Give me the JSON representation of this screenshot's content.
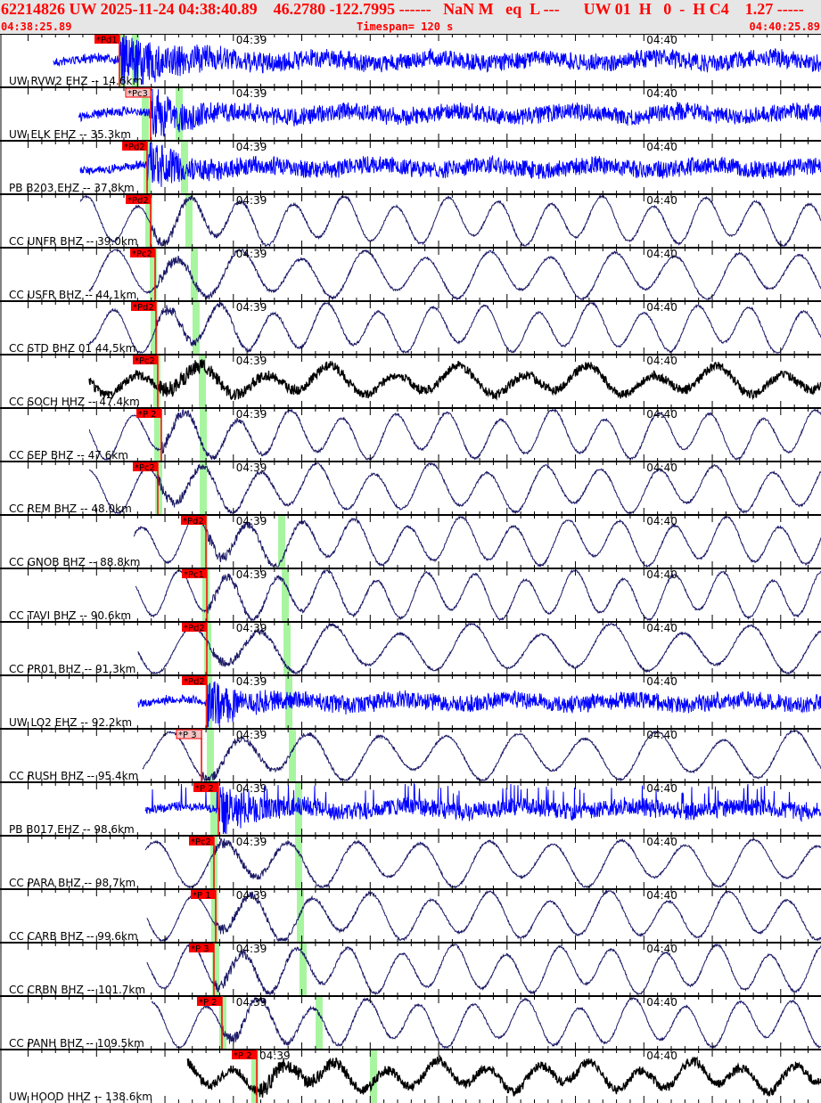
{
  "header": {
    "summary": "62214826 UW 2025-11-24 04:38:40.89    46.2780 -122.7995 ------   NaN M   eq  L ---      UW 01  H   0  -  H C4    1.27 -----",
    "start_time": "04:38:25.89",
    "timespan": "Timespan= 120 s",
    "end_time": "04:40:25.89"
  },
  "axis": {
    "minute_labels": [
      "04:39",
      "04:40"
    ]
  },
  "colors": {
    "short_period": "#0000ff",
    "broadband": "#1c1a66",
    "high_gain": "#000000",
    "pick": "#ff0000",
    "pick_weak": "#f4c4c4",
    "theoretical": "#a8f5a0",
    "title": "#ff0000"
  },
  "traces": [
    {
      "label": "UW RVW2 EHZ -- 14.6km",
      "pick": "*Pd1",
      "pick_time": "04:38:43.35",
      "pick_style": "strong",
      "p_mark": "04:38:43.74",
      "s_mark": "04:38:45.69",
      "color": "short_period",
      "kind": "hf"
    },
    {
      "label": "UW ELK EHZ -- 35.3km",
      "pick": "*Pc3",
      "pick_time": "04:38:47.91",
      "pick_style": "weak",
      "p_mark": "04:38:47.13",
      "s_mark": "04:38:52.08",
      "color": "short_period",
      "kind": "hf"
    },
    {
      "label": "PB B203 EHZ -- 37.8km",
      "pick": "*Pd2",
      "pick_time": "04:38:47.39",
      "pick_style": "strong",
      "p_mark": "04:38:47.39",
      "s_mark": "04:38:52.86",
      "color": "short_period",
      "kind": "hf"
    },
    {
      "label": "CC UNFR BHZ -- 39.0km",
      "pick": "*Pd2",
      "pick_time": "04:38:47.91",
      "pick_style": "strong",
      "p_mark": "04:38:47.65",
      "s_mark": "04:38:53.51",
      "color": "broadband",
      "kind": "lp"
    },
    {
      "label": "CC USFR BHZ -- 44.1km",
      "pick": "*Pc2",
      "pick_time": "04:38:48.56",
      "pick_style": "strong",
      "p_mark": "04:38:48.30",
      "s_mark": "04:38:54.29",
      "color": "broadband",
      "kind": "lp"
    },
    {
      "label": "CC STD BHZ 01 44.5km",
      "pick": "*Pd2",
      "pick_time": "04:38:48.69",
      "pick_style": "strong",
      "p_mark": "04:38:48.43",
      "s_mark": "04:38:54.55",
      "color": "broadband",
      "kind": "lp"
    },
    {
      "label": "CC SOCH HHZ -- 47.4km",
      "pick": "*Pc2",
      "pick_time": "04:38:48.95",
      "pick_style": "strong",
      "p_mark": "04:38:48.82",
      "s_mark": "04:38:55.47",
      "color": "high_gain",
      "kind": "lpn"
    },
    {
      "label": "CC SEP BHZ -- 47.6km",
      "pick": "*P 2",
      "pick_time": "04:38:49.47",
      "pick_style": "strong",
      "p_mark": "04:38:48.95",
      "s_mark": "04:38:55.60",
      "color": "broadband",
      "kind": "lp"
    },
    {
      "label": "CC REM BHZ -- 48.0km",
      "pick": "*Pc2",
      "pick_time": "04:38:48.95",
      "pick_style": "strong",
      "p_mark": "04:38:49.08",
      "s_mark": "04:38:55.60",
      "color": "broadband",
      "kind": "lp"
    },
    {
      "label": "CC GNOB BHZ -- 88.8km",
      "pick": "*Pd2",
      "pick_time": "04:38:55.99",
      "pick_style": "strong",
      "p_mark": "04:38:55.73",
      "s_mark": "04:39:07.06",
      "color": "broadband",
      "kind": "lp"
    },
    {
      "label": "CC TAVI BHZ -- 90.6km",
      "pick": "*Pc1",
      "pick_time": "04:38:56.12",
      "pick_style": "strong",
      "p_mark": "04:38:55.99",
      "s_mark": "04:39:07.59",
      "color": "broadband",
      "kind": "lp"
    },
    {
      "label": "CC PR01 BHZ -- 91.3km",
      "pick": "*Pd2",
      "pick_time": "04:38:56.12",
      "pick_style": "strong",
      "p_mark": "04:38:56.25",
      "s_mark": "04:39:07.85",
      "color": "broadband",
      "kind": "lp"
    },
    {
      "label": "UW LO2 EHZ -- 92.2km",
      "pick": "*Pd2",
      "pick_time": "04:38:56.12",
      "pick_style": "strong",
      "p_mark": "04:38:56.38",
      "s_mark": "04:39:08.11",
      "color": "short_period",
      "kind": "hf"
    },
    {
      "label": "CC RUSH BHZ -- 95.4km",
      "pick": "*P 3",
      "pick_time": "04:38:55.34",
      "pick_style": "weak",
      "p_mark": "04:38:56.64",
      "s_mark": "04:39:08.63",
      "color": "broadband",
      "kind": "lp"
    },
    {
      "label": "PB B017 EHZ -- 98.6km",
      "pick": "*P 2",
      "pick_time": "04:38:57.81",
      "pick_style": "strong",
      "p_mark": "04:38:57.16",
      "s_mark": "04:39:09.54",
      "color": "short_period",
      "kind": "spiky"
    },
    {
      "label": "CC PARA BHZ -- 98.7km",
      "pick": "*Pc2",
      "pick_time": "04:38:57.16",
      "pick_style": "strong",
      "p_mark": "04:38:57.16",
      "s_mark": "04:39:09.54",
      "color": "broadband",
      "kind": "lp"
    },
    {
      "label": "CC CARB BHZ -- 99.6km",
      "pick": "*P 1",
      "pick_time": "04:38:57.42",
      "pick_style": "strong",
      "p_mark": "04:38:57.29",
      "s_mark": "04:39:09.80",
      "color": "broadband",
      "kind": "lp"
    },
    {
      "label": "CC CRBN BHZ -- 101.7km",
      "pick": "*P 3",
      "pick_time": "04:38:57.16",
      "pick_style": "strong",
      "p_mark": "04:38:57.42",
      "s_mark": "04:39:10.19",
      "color": "broadband",
      "kind": "lp"
    },
    {
      "label": "CC PANH BHZ -- 109.5km",
      "pick": "*P 2",
      "pick_time": "04:38:58.33",
      "pick_style": "strong",
      "p_mark": "04:38:58.46",
      "s_mark": "04:39:12.54",
      "color": "broadband",
      "kind": "lp"
    },
    {
      "label": "UW HOOD HHZ -- 138.6km",
      "pick": "*P 2",
      "pick_time": "04:39:03.42",
      "pick_style": "strong",
      "p_mark": "04:39:03.15",
      "s_mark": "04:39:20.48",
      "color": "high_gain",
      "kind": "lpn"
    }
  ]
}
